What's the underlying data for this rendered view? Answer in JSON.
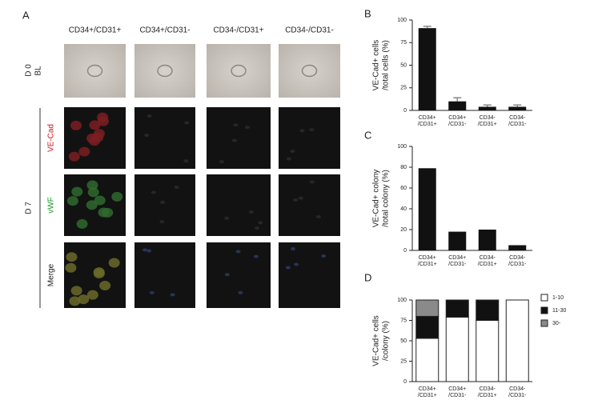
{
  "panel_a": {
    "label": "A",
    "columns": [
      "CD34+/CD31+",
      "CD34+/CD31-",
      "CD34-/CD31+",
      "CD34-/CD31-"
    ],
    "day_labels": [
      "D 0",
      "D 7"
    ],
    "row_labels": [
      "BL",
      "VE-Cad",
      "vWF",
      "Merge"
    ]
  },
  "chart_data": [
    {
      "type": "bar",
      "label": "B",
      "ylabel": [
        "VE-Cad+ cells",
        "/total cells (%)"
      ],
      "categories": [
        [
          "CD34+",
          "/CD31+"
        ],
        [
          "CD34+",
          "/CD31-"
        ],
        [
          "CD34-",
          "/CD31+"
        ],
        [
          "CD34-",
          "/CD31-"
        ]
      ],
      "values": [
        91,
        10,
        4,
        4
      ],
      "errors": [
        2,
        4,
        2,
        2
      ],
      "color": "#111111",
      "ylim": [
        0,
        100
      ],
      "yticks": [
        0,
        25,
        50,
        75,
        100
      ]
    },
    {
      "type": "bar",
      "label": "C",
      "ylabel": [
        "VE-Cad+ colony",
        "/total colony (%)"
      ],
      "categories": [
        [
          "CD34+",
          "/CD31+"
        ],
        [
          "CD34+",
          "/CD31-"
        ],
        [
          "CD34-",
          "/CD31+"
        ],
        [
          "CD34-",
          "/CD31-"
        ]
      ],
      "values": [
        79,
        18,
        20,
        5
      ],
      "color": "#111111",
      "ylim": [
        0,
        100
      ],
      "yticks": [
        0,
        20,
        40,
        60,
        80,
        100
      ]
    },
    {
      "type": "stacked_bar",
      "label": "D",
      "ylabel": [
        "VE-Cad+ cells",
        "/colony (%)"
      ],
      "categories": [
        [
          "CD34+",
          "/CD31+"
        ],
        [
          "CD34+",
          "/CD31-"
        ],
        [
          "CD34-",
          "/CD31+"
        ],
        [
          "CD34-",
          "/CD31-"
        ]
      ],
      "series": [
        {
          "name": "1-10",
          "color": "#ffffff",
          "values": [
            53,
            79,
            75,
            100
          ]
        },
        {
          "name": "11-30",
          "color": "#111111",
          "values": [
            27,
            21,
            25,
            0
          ]
        },
        {
          "name": "30-",
          "color": "#8a8a8a",
          "values": [
            20,
            0,
            0,
            0
          ]
        }
      ],
      "ylim": [
        0,
        100
      ],
      "yticks": [
        0,
        25,
        50,
        75,
        100
      ]
    }
  ]
}
